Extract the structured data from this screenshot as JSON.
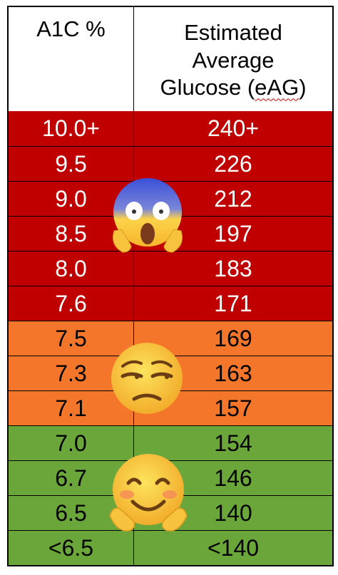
{
  "header": {
    "col1": "A1C %",
    "col2_line1": "Estimated",
    "col2_line2": "Average",
    "col2_line3_prefix": "Glucose (",
    "col2_line3_abbrev": "eAG",
    "col2_line3_suffix": ")"
  },
  "rows": [
    {
      "a1c": "10.0+",
      "eag": "240+",
      "zone": "red"
    },
    {
      "a1c": "9.5",
      "eag": "226",
      "zone": "red"
    },
    {
      "a1c": "9.0",
      "eag": "212",
      "zone": "red"
    },
    {
      "a1c": "8.5",
      "eag": "197",
      "zone": "red"
    },
    {
      "a1c": "8.0",
      "eag": "183",
      "zone": "red"
    },
    {
      "a1c": "7.6",
      "eag": "171",
      "zone": "red"
    },
    {
      "a1c": "7.5",
      "eag": "169",
      "zone": "orange"
    },
    {
      "a1c": "7.3",
      "eag": "163",
      "zone": "orange"
    },
    {
      "a1c": "7.1",
      "eag": "157",
      "zone": "orange"
    },
    {
      "a1c": "7.0",
      "eag": "154",
      "zone": "green"
    },
    {
      "a1c": "6.7",
      "eag": "146",
      "zone": "green"
    },
    {
      "a1c": "6.5",
      "eag": "140",
      "zone": "green"
    },
    {
      "a1c": "<6.5",
      "eag": "<140",
      "zone": "green"
    }
  ],
  "colors": {
    "red": "#c00000",
    "orange": "#f4762a",
    "green": "#6aa63a"
  },
  "emojis": [
    "screaming-face-icon",
    "unamused-face-icon",
    "hugging-face-icon"
  ]
}
